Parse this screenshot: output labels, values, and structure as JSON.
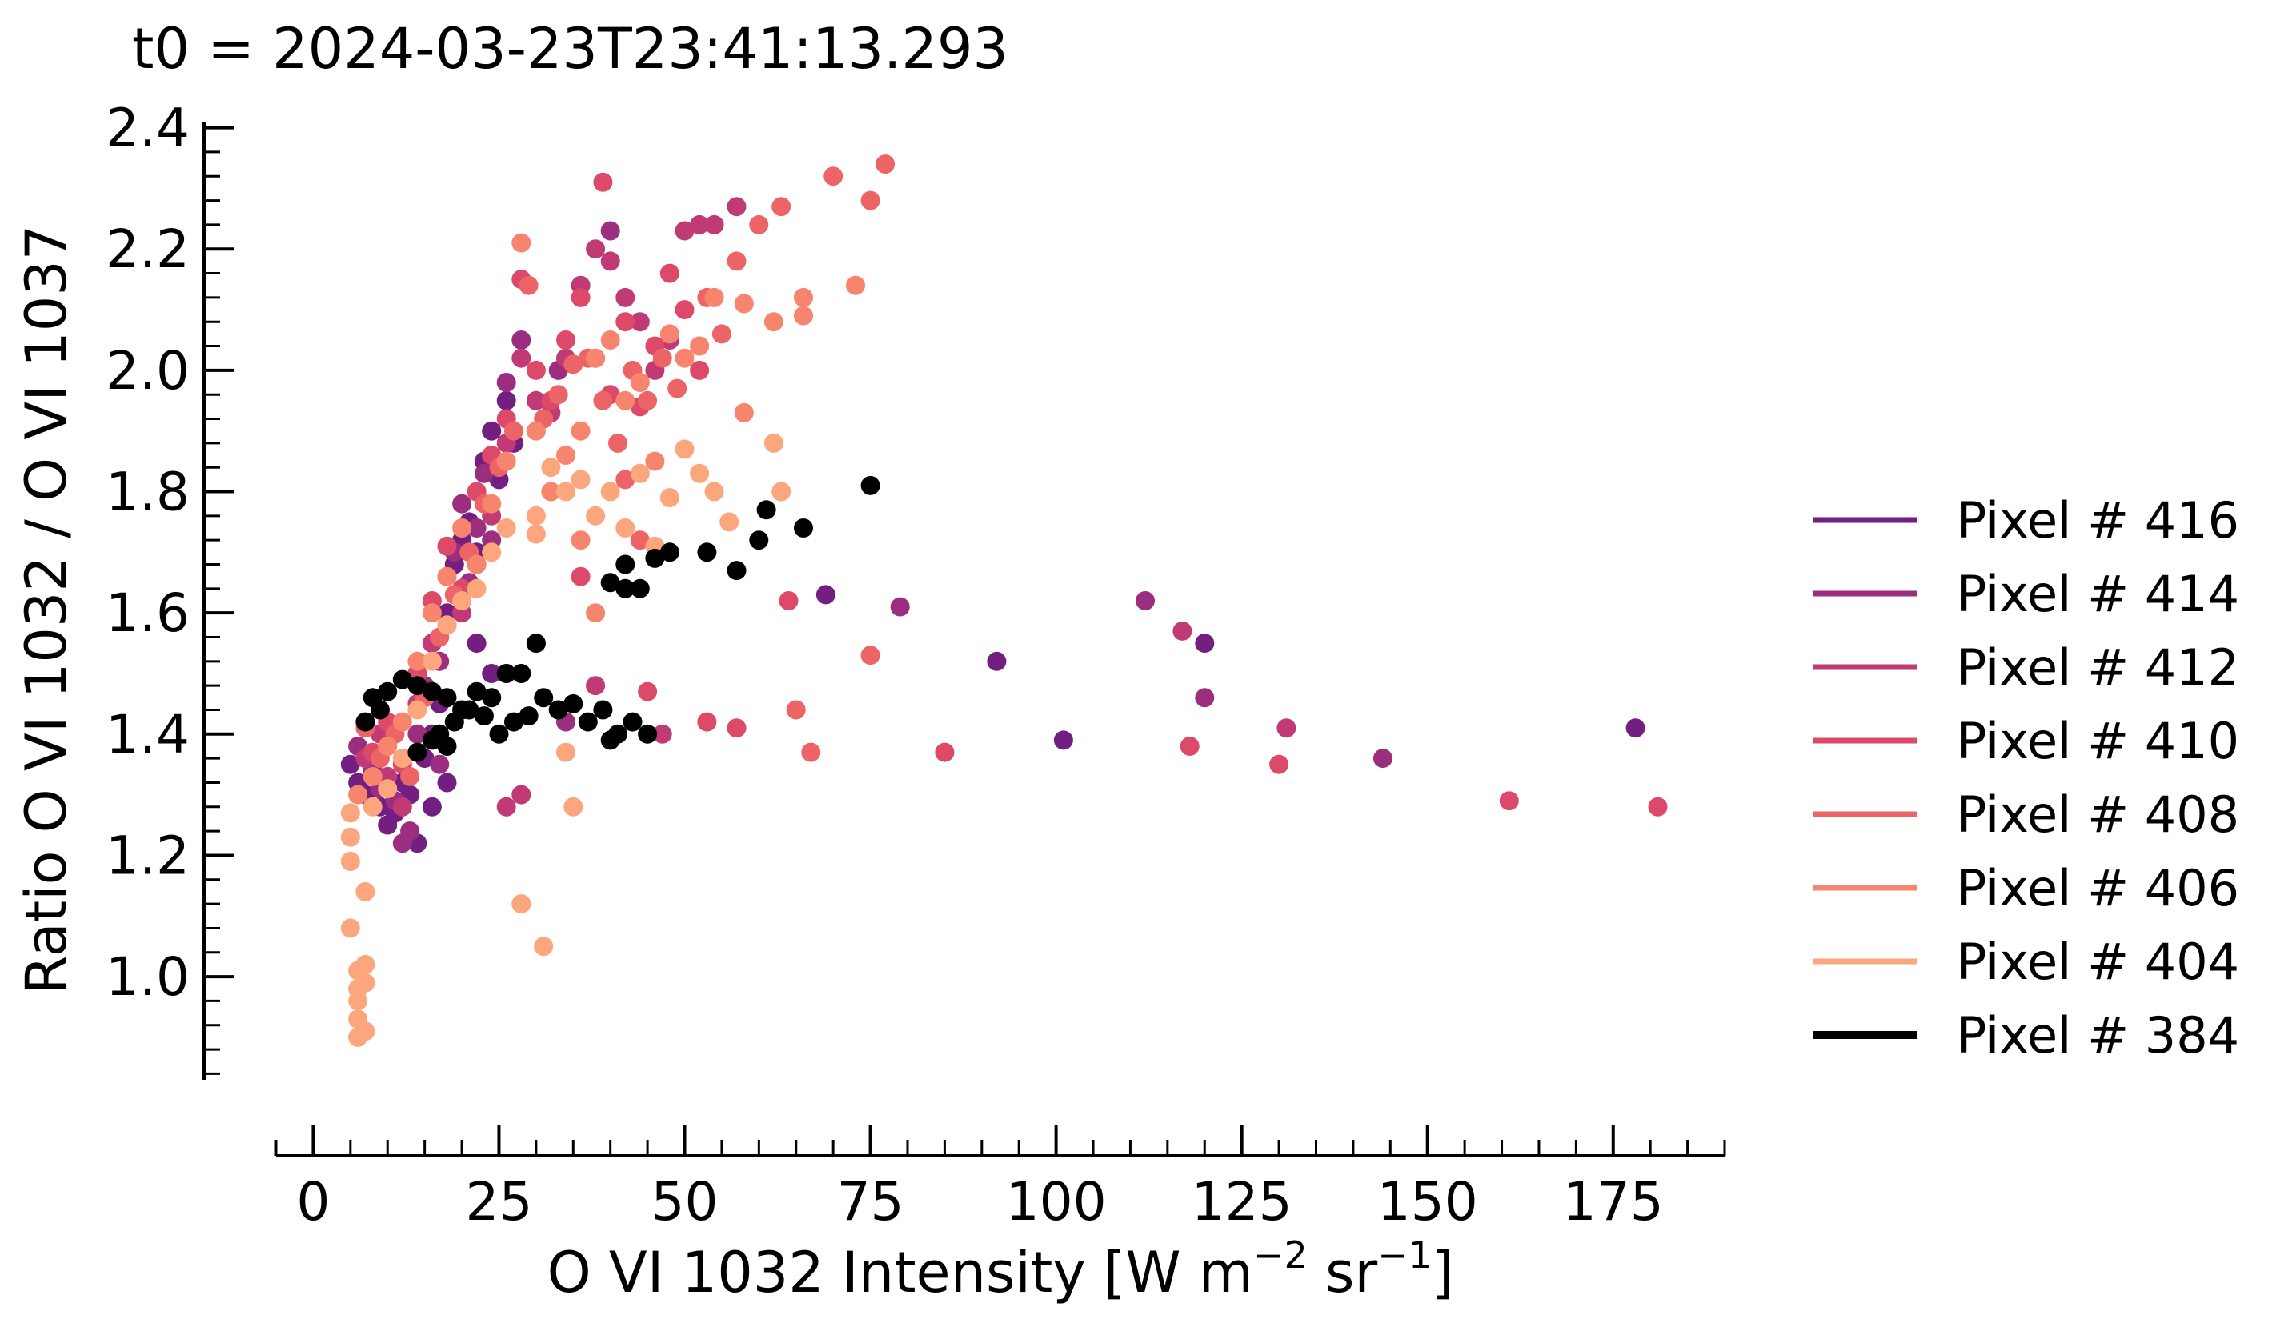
{
  "chart_data": {
    "type": "scatter",
    "title": "t0 = 2024-03-23T23:41:13.293",
    "xlabel": {
      "main": "O VI 1032 Intensity [W m",
      "sup1": "−2",
      "mid": " sr",
      "sup2": "−1",
      "end": "]"
    },
    "ylabel": "Ratio O VI 1032 / O VI 1037",
    "xlim": [
      -5,
      190
    ],
    "ylim": [
      0.83,
      2.41
    ],
    "xticks": [
      0,
      25,
      50,
      75,
      100,
      125,
      150,
      175
    ],
    "xtick_labels": [
      "0",
      "25",
      "50",
      "75",
      "100",
      "125",
      "150",
      "175"
    ],
    "yticks": [
      1.0,
      1.2,
      1.4,
      1.6,
      1.8,
      2.0,
      2.2,
      2.4
    ],
    "ytick_labels": [
      "1.0",
      "1.2",
      "1.4",
      "1.6",
      "1.8",
      "2.0",
      "2.2",
      "2.4"
    ],
    "grid": false,
    "legend_position": "right",
    "series": [
      {
        "name": "Pixel # 416",
        "color": "#721f81",
        "points": [
          [
            5,
            1.35
          ],
          [
            6,
            1.32
          ],
          [
            7,
            1.3
          ],
          [
            8,
            1.33
          ],
          [
            9,
            1.28
          ],
          [
            10,
            1.25
          ],
          [
            11,
            1.27
          ],
          [
            12,
            1.32
          ],
          [
            13,
            1.3
          ],
          [
            14,
            1.22
          ],
          [
            15,
            1.36
          ],
          [
            16,
            1.4
          ],
          [
            17,
            1.45
          ],
          [
            18,
            1.6
          ],
          [
            19,
            1.68
          ],
          [
            20,
            1.72
          ],
          [
            21,
            1.75
          ],
          [
            22,
            1.7
          ],
          [
            23,
            1.85
          ],
          [
            24,
            1.9
          ],
          [
            25,
            1.82
          ],
          [
            26,
            1.95
          ],
          [
            27,
            1.88
          ],
          [
            20,
            1.62
          ],
          [
            22,
            1.55
          ],
          [
            24,
            1.5
          ],
          [
            18,
            1.32
          ],
          [
            16,
            1.28
          ],
          [
            69,
            1.63
          ],
          [
            92,
            1.52
          ],
          [
            101,
            1.39
          ],
          [
            120,
            1.55
          ],
          [
            178,
            1.41
          ]
        ]
      },
      {
        "name": "Pixel # 414",
        "color": "#9c2e7f",
        "points": [
          [
            6,
            1.38
          ],
          [
            8,
            1.34
          ],
          [
            9,
            1.31
          ],
          [
            11,
            1.29
          ],
          [
            13,
            1.24
          ],
          [
            14,
            1.4
          ],
          [
            15,
            1.48
          ],
          [
            17,
            1.52
          ],
          [
            18,
            1.58
          ],
          [
            19,
            1.7
          ],
          [
            20,
            1.78
          ],
          [
            21,
            1.65
          ],
          [
            22,
            1.74
          ],
          [
            23,
            1.83
          ],
          [
            24,
            1.72
          ],
          [
            26,
            1.98
          ],
          [
            28,
            2.05
          ],
          [
            17,
            1.35
          ],
          [
            12,
            1.22
          ],
          [
            79,
            1.61
          ],
          [
            112,
            1.62
          ],
          [
            120,
            1.46
          ],
          [
            144,
            1.36
          ],
          [
            34,
            1.42
          ],
          [
            40,
            2.23
          ],
          [
            33,
            2.0
          ]
        ]
      },
      {
        "name": "Pixel # 412",
        "color": "#c03a76",
        "points": [
          [
            7,
            1.36
          ],
          [
            9,
            1.4
          ],
          [
            10,
            1.33
          ],
          [
            12,
            1.28
          ],
          [
            14,
            1.45
          ],
          [
            16,
            1.55
          ],
          [
            18,
            1.66
          ],
          [
            20,
            1.6
          ],
          [
            22,
            1.68
          ],
          [
            24,
            1.76
          ],
          [
            26,
            1.88
          ],
          [
            28,
            2.02
          ],
          [
            30,
            1.95
          ],
          [
            32,
            1.93
          ],
          [
            34,
            2.02
          ],
          [
            36,
            2.14
          ],
          [
            38,
            2.2
          ],
          [
            40,
            2.18
          ],
          [
            42,
            2.12
          ],
          [
            44,
            2.08
          ],
          [
            46,
            2.0
          ],
          [
            48,
            2.05
          ],
          [
            50,
            2.23
          ],
          [
            52,
            2.24
          ],
          [
            54,
            2.24
          ],
          [
            57,
            2.27
          ],
          [
            30,
            1.55
          ],
          [
            28,
            1.3
          ],
          [
            26,
            1.28
          ],
          [
            117,
            1.57
          ],
          [
            131,
            1.41
          ],
          [
            47,
            1.4
          ],
          [
            38,
            1.48
          ]
        ]
      },
      {
        "name": "Pixel # 410",
        "color": "#dd4968",
        "points": [
          [
            8,
            1.37
          ],
          [
            10,
            1.42
          ],
          [
            12,
            1.35
          ],
          [
            14,
            1.5
          ],
          [
            16,
            1.62
          ],
          [
            18,
            1.71
          ],
          [
            20,
            1.64
          ],
          [
            22,
            1.8
          ],
          [
            24,
            1.86
          ],
          [
            26,
            1.92
          ],
          [
            28,
            2.15
          ],
          [
            30,
            2.0
          ],
          [
            32,
            1.95
          ],
          [
            34,
            2.05
          ],
          [
            36,
            2.12
          ],
          [
            38,
            2.02
          ],
          [
            40,
            1.96
          ],
          [
            42,
            2.08
          ],
          [
            44,
            1.94
          ],
          [
            46,
            2.04
          ],
          [
            48,
            2.16
          ],
          [
            50,
            2.1
          ],
          [
            52,
            2.0
          ],
          [
            64,
            1.62
          ],
          [
            85,
            1.37
          ],
          [
            118,
            1.38
          ],
          [
            130,
            1.35
          ],
          [
            161,
            1.29
          ],
          [
            181,
            1.28
          ],
          [
            53,
            1.42
          ],
          [
            57,
            1.41
          ],
          [
            39,
            2.31
          ],
          [
            36,
            1.66
          ],
          [
            45,
            1.47
          ]
        ]
      },
      {
        "name": "Pixel # 408",
        "color": "#ed6467",
        "points": [
          [
            7,
            1.41
          ],
          [
            9,
            1.36
          ],
          [
            11,
            1.4
          ],
          [
            13,
            1.33
          ],
          [
            15,
            1.46
          ],
          [
            17,
            1.56
          ],
          [
            19,
            1.63
          ],
          [
            21,
            1.7
          ],
          [
            23,
            1.78
          ],
          [
            25,
            1.84
          ],
          [
            27,
            1.9
          ],
          [
            29,
            2.14
          ],
          [
            31,
            1.92
          ],
          [
            33,
            1.96
          ],
          [
            35,
            2.01
          ],
          [
            37,
            2.02
          ],
          [
            39,
            1.95
          ],
          [
            41,
            1.88
          ],
          [
            43,
            2.0
          ],
          [
            45,
            1.95
          ],
          [
            47,
            2.02
          ],
          [
            49,
            1.97
          ],
          [
            53,
            2.12
          ],
          [
            55,
            2.06
          ],
          [
            57,
            2.18
          ],
          [
            60,
            2.24
          ],
          [
            63,
            2.27
          ],
          [
            70,
            2.32
          ],
          [
            75,
            2.28
          ],
          [
            77,
            2.34
          ],
          [
            65,
            1.44
          ],
          [
            75,
            1.53
          ],
          [
            67,
            1.37
          ],
          [
            42,
            1.82
          ],
          [
            44,
            1.72
          ]
        ]
      },
      {
        "name": "Pixel # 406",
        "color": "#f7856d",
        "points": [
          [
            6,
            1.3
          ],
          [
            8,
            1.33
          ],
          [
            10,
            1.38
          ],
          [
            12,
            1.42
          ],
          [
            14,
            1.52
          ],
          [
            16,
            1.6
          ],
          [
            18,
            1.66
          ],
          [
            20,
            1.74
          ],
          [
            22,
            1.68
          ],
          [
            24,
            1.78
          ],
          [
            26,
            1.85
          ],
          [
            28,
            2.21
          ],
          [
            30,
            1.9
          ],
          [
            32,
            1.8
          ],
          [
            34,
            1.86
          ],
          [
            36,
            1.9
          ],
          [
            38,
            2.02
          ],
          [
            40,
            2.05
          ],
          [
            42,
            1.95
          ],
          [
            44,
            1.98
          ],
          [
            46,
            1.85
          ],
          [
            48,
            2.06
          ],
          [
            50,
            2.02
          ],
          [
            52,
            2.04
          ],
          [
            54,
            2.12
          ],
          [
            58,
            2.11
          ],
          [
            62,
            2.08
          ],
          [
            66,
            2.09
          ],
          [
            66,
            2.12
          ],
          [
            73,
            2.14
          ],
          [
            58,
            1.93
          ],
          [
            36,
            1.72
          ],
          [
            38,
            1.6
          ]
        ]
      },
      {
        "name": "Pixel # 404",
        "color": "#fba67d",
        "points": [
          [
            5,
            1.27
          ],
          [
            5,
            1.23
          ],
          [
            5,
            1.19
          ],
          [
            5,
            1.08
          ],
          [
            6,
            1.01
          ],
          [
            6,
            0.98
          ],
          [
            6,
            0.96
          ],
          [
            6,
            0.93
          ],
          [
            6,
            0.9
          ],
          [
            7,
            0.91
          ],
          [
            7,
            1.02
          ],
          [
            7,
            0.99
          ],
          [
            7,
            1.14
          ],
          [
            8,
            1.28
          ],
          [
            10,
            1.31
          ],
          [
            12,
            1.36
          ],
          [
            14,
            1.44
          ],
          [
            16,
            1.52
          ],
          [
            18,
            1.58
          ],
          [
            20,
            1.62
          ],
          [
            22,
            1.64
          ],
          [
            24,
            1.7
          ],
          [
            26,
            1.74
          ],
          [
            30,
            1.76
          ],
          [
            32,
            1.84
          ],
          [
            34,
            1.8
          ],
          [
            36,
            1.82
          ],
          [
            38,
            1.76
          ],
          [
            40,
            1.8
          ],
          [
            42,
            1.74
          ],
          [
            44,
            1.83
          ],
          [
            46,
            1.71
          ],
          [
            48,
            1.79
          ],
          [
            50,
            1.87
          ],
          [
            52,
            1.83
          ],
          [
            54,
            1.8
          ],
          [
            56,
            1.75
          ],
          [
            62,
            1.88
          ],
          [
            63,
            1.8
          ],
          [
            28,
            1.12
          ],
          [
            31,
            1.05
          ],
          [
            35,
            1.28
          ],
          [
            34,
            1.37
          ],
          [
            30,
            1.73
          ]
        ]
      },
      {
        "name": "Pixel # 384",
        "color": "#000000",
        "points": [
          [
            14,
            1.37
          ],
          [
            16,
            1.39
          ],
          [
            17,
            1.4
          ],
          [
            18,
            1.38
          ],
          [
            19,
            1.42
          ],
          [
            21,
            1.44
          ],
          [
            23,
            1.43
          ],
          [
            25,
            1.4
          ],
          [
            27,
            1.42
          ],
          [
            29,
            1.43
          ],
          [
            31,
            1.46
          ],
          [
            33,
            1.44
          ],
          [
            35,
            1.45
          ],
          [
            37,
            1.42
          ],
          [
            39,
            1.44
          ],
          [
            41,
            1.4
          ],
          [
            43,
            1.42
          ],
          [
            45,
            1.4
          ],
          [
            8,
            1.46
          ],
          [
            10,
            1.47
          ],
          [
            12,
            1.49
          ],
          [
            14,
            1.48
          ],
          [
            16,
            1.47
          ],
          [
            18,
            1.46
          ],
          [
            20,
            1.44
          ],
          [
            22,
            1.47
          ],
          [
            24,
            1.46
          ],
          [
            26,
            1.5
          ],
          [
            28,
            1.5
          ],
          [
            30,
            1.55
          ],
          [
            40,
            1.65
          ],
          [
            42,
            1.64
          ],
          [
            44,
            1.64
          ],
          [
            46,
            1.69
          ],
          [
            48,
            1.7
          ],
          [
            53,
            1.7
          ],
          [
            57,
            1.67
          ],
          [
            60,
            1.72
          ],
          [
            61,
            1.77
          ],
          [
            66,
            1.74
          ],
          [
            75,
            1.81
          ],
          [
            9,
            1.44
          ],
          [
            7,
            1.42
          ],
          [
            40,
            1.39
          ],
          [
            42,
            1.68
          ]
        ]
      }
    ]
  }
}
